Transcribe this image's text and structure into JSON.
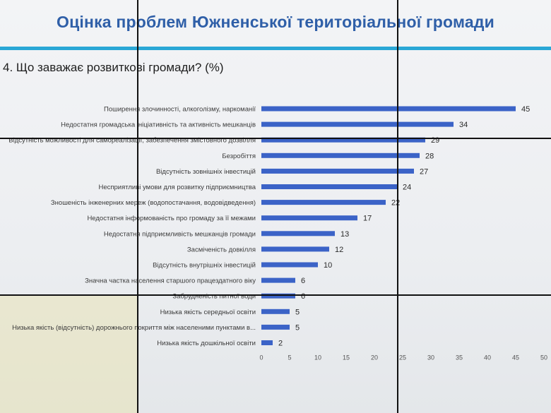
{
  "slide": {
    "title": "Оцінка проблем Южненської територіальної громади",
    "question": "4. Що заважає розвиткові громади? (%)"
  },
  "colors": {
    "title": "#2f5fa8",
    "rule": "#2aa7d6",
    "bar": "#3b63c7"
  },
  "chart_data": {
    "type": "bar",
    "orientation": "horizontal",
    "title": "4. Що заважає розвиткові громади? (%)",
    "xlim": [
      0,
      50
    ],
    "xticks": [
      0,
      5,
      10,
      15,
      20,
      25,
      30,
      35,
      40,
      45,
      50
    ],
    "grid": false,
    "data_labels": true,
    "categories": [
      "Поширення злочинності, алкоголізму, наркоманії",
      "Недостатня громадська ініціативність та активність мешканців",
      "Відсутність можливості для самореалізації, забезпечення змістовного дозвілля",
      "Безробіття",
      "Відсутність зовнішніх інвестицій",
      "Несприятливі умови для розвитку підприємництва",
      "Зношеність інженерних мереж (водопостачання, водовідведення)",
      "Недостатня інформованість про громаду за її межами",
      "Недостатня підприємливість мешканців громади",
      "Засміченість довкілля",
      "Відсутність внутрішніх інвестицій",
      "Значна частка населення старшого працездатного віку",
      "Забрудненість питної води",
      "Низька якість середньої освіти",
      "Низька якість (відсутність) дорожнього покриття між населеними пунктами в...",
      "Низька якість дошкільної освіти"
    ],
    "values": [
      45,
      34,
      29,
      28,
      27,
      24,
      22,
      17,
      13,
      12,
      10,
      6,
      6,
      5,
      5,
      2
    ]
  }
}
